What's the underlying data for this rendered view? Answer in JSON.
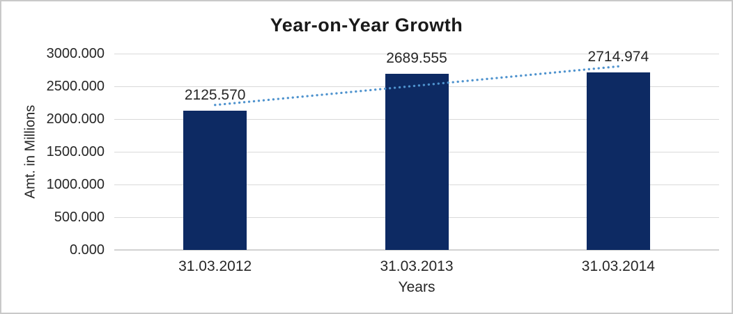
{
  "chart_data": {
    "type": "bar",
    "title": "Year-on-Year Growth",
    "xlabel": "Years",
    "ylabel": "Amt. in Millions",
    "categories": [
      "31.03.2012",
      "31.03.2013",
      "31.03.2014"
    ],
    "values": [
      2125.57,
      2689.555,
      2714.974
    ],
    "value_labels": [
      "2125.570",
      "2689.555",
      "2714.974"
    ],
    "y_ticks": [
      "3000.000",
      "2500.000",
      "2000.000",
      "1500.000",
      "1000.000",
      "500.000",
      "0.000"
    ],
    "ylim": [
      0,
      3000
    ],
    "grid": true,
    "legend": false,
    "bar_color": "#0d2a63",
    "gridline_color": "#d9d9d9",
    "axis_line_color": "#d2d2d2",
    "frame_color": "#c9c9c9",
    "trendline": {
      "type": "linear",
      "style": "dotted",
      "color": "#4f93ce",
      "endpoint_values": [
        2215.3,
        2804.7
      ]
    }
  }
}
